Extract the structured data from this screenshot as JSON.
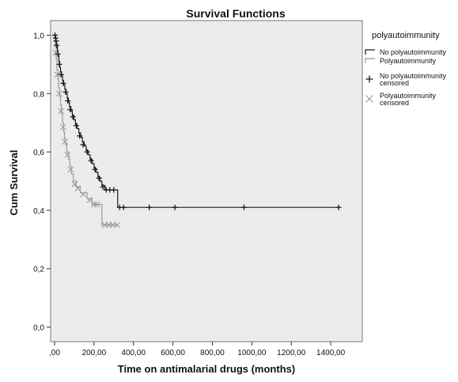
{
  "chart_data": {
    "type": "line",
    "subtype": "kaplan-meier step",
    "title": "Survival Functions",
    "xlabel": "Time on antimalarial drugs (months)",
    "ylabel": "Cum Survival",
    "xlim": [
      -20,
      1560
    ],
    "ylim": [
      -0.05,
      1.05
    ],
    "x_ticks": [
      0,
      200,
      400,
      600,
      800,
      1000,
      1200,
      1400
    ],
    "x_tick_labels": [
      ",00",
      "200,00",
      "400,00",
      "600,00",
      "800,00",
      "1000,00",
      "1200,00",
      "1400,00"
    ],
    "y_ticks": [
      0,
      0.2,
      0.4,
      0.6,
      0.8,
      1.0
    ],
    "y_tick_labels": [
      "0,0",
      "0,2",
      "0,4",
      "0,6",
      "0,8",
      "1,0"
    ],
    "grid": false,
    "plot_background": "#ececec",
    "legend": {
      "title": "polyautoimmunity",
      "placement": "right",
      "entries": [
        {
          "label": "No polyautoimmunity",
          "symbol": "step-line",
          "color": "#1a1a1a"
        },
        {
          "label": "Polyautoimmunity",
          "symbol": "step-line",
          "color": "#9a9a9a"
        },
        {
          "label": "No polyautoimmunity censored",
          "lines": [
            "No polyautoimmunity",
            "censored"
          ],
          "symbol": "plus",
          "color": "#1a1a1a"
        },
        {
          "label": "Polyautoimmunity censored",
          "lines": [
            "Polyautoimmunity",
            "censored"
          ],
          "symbol": "x",
          "color": "#9a9a9a"
        }
      ]
    },
    "series": [
      {
        "name": "No polyautoimmunity",
        "color": "#1a1a1a",
        "censor_marker": "plus",
        "steps": [
          [
            0,
            1.0
          ],
          [
            3,
            0.99
          ],
          [
            6,
            0.98
          ],
          [
            9,
            0.97
          ],
          [
            12,
            0.96
          ],
          [
            15,
            0.945
          ],
          [
            18,
            0.93
          ],
          [
            22,
            0.91
          ],
          [
            26,
            0.89
          ],
          [
            30,
            0.875
          ],
          [
            35,
            0.86
          ],
          [
            40,
            0.845
          ],
          [
            46,
            0.83
          ],
          [
            52,
            0.815
          ],
          [
            58,
            0.8
          ],
          [
            64,
            0.785
          ],
          [
            70,
            0.77
          ],
          [
            76,
            0.755
          ],
          [
            83,
            0.74
          ],
          [
            90,
            0.725
          ],
          [
            98,
            0.71
          ],
          [
            106,
            0.695
          ],
          [
            114,
            0.68
          ],
          [
            123,
            0.665
          ],
          [
            132,
            0.65
          ],
          [
            141,
            0.635
          ],
          [
            150,
            0.62
          ],
          [
            160,
            0.605
          ],
          [
            170,
            0.59
          ],
          [
            180,
            0.575
          ],
          [
            190,
            0.56
          ],
          [
            200,
            0.545
          ],
          [
            210,
            0.53
          ],
          [
            220,
            0.515
          ],
          [
            230,
            0.5
          ],
          [
            240,
            0.485
          ],
          [
            255,
            0.47
          ],
          [
            320,
            0.41
          ],
          [
            1440,
            0.41
          ]
        ],
        "censored": [
          [
            2,
            1.0
          ],
          [
            5,
            0.99
          ],
          [
            8,
            0.98
          ],
          [
            11,
            0.965
          ],
          [
            17,
            0.935
          ],
          [
            24,
            0.9
          ],
          [
            33,
            0.865
          ],
          [
            44,
            0.835
          ],
          [
            56,
            0.805
          ],
          [
            67,
            0.775
          ],
          [
            79,
            0.745
          ],
          [
            93,
            0.72
          ],
          [
            110,
            0.69
          ],
          [
            127,
            0.655
          ],
          [
            145,
            0.625
          ],
          [
            165,
            0.6
          ],
          [
            185,
            0.57
          ],
          [
            205,
            0.54
          ],
          [
            225,
            0.51
          ],
          [
            245,
            0.48
          ],
          [
            262,
            0.47
          ],
          [
            280,
            0.47
          ],
          [
            300,
            0.47
          ],
          [
            330,
            0.41
          ],
          [
            350,
            0.41
          ],
          [
            480,
            0.41
          ],
          [
            610,
            0.41
          ],
          [
            960,
            0.41
          ],
          [
            1440,
            0.41
          ]
        ]
      },
      {
        "name": "Polyautoimmunity",
        "color": "#9a9a9a",
        "censor_marker": "x",
        "steps": [
          [
            0,
            0.99
          ],
          [
            4,
            0.96
          ],
          [
            8,
            0.92
          ],
          [
            12,
            0.88
          ],
          [
            16,
            0.85
          ],
          [
            20,
            0.82
          ],
          [
            25,
            0.79
          ],
          [
            30,
            0.76
          ],
          [
            35,
            0.73
          ],
          [
            40,
            0.7
          ],
          [
            45,
            0.67
          ],
          [
            50,
            0.645
          ],
          [
            55,
            0.625
          ],
          [
            62,
            0.6
          ],
          [
            70,
            0.575
          ],
          [
            78,
            0.55
          ],
          [
            85,
            0.525
          ],
          [
            95,
            0.5
          ],
          [
            110,
            0.48
          ],
          [
            130,
            0.46
          ],
          [
            165,
            0.44
          ],
          [
            190,
            0.42
          ],
          [
            240,
            0.35
          ],
          [
            320,
            0.35
          ]
        ],
        "censored": [
          [
            6,
            0.94
          ],
          [
            14,
            0.865
          ],
          [
            23,
            0.8
          ],
          [
            33,
            0.74
          ],
          [
            43,
            0.685
          ],
          [
            53,
            0.635
          ],
          [
            66,
            0.59
          ],
          [
            82,
            0.54
          ],
          [
            102,
            0.49
          ],
          [
            118,
            0.475
          ],
          [
            145,
            0.455
          ],
          [
            178,
            0.435
          ],
          [
            200,
            0.42
          ],
          [
            215,
            0.42
          ],
          [
            255,
            0.35
          ],
          [
            275,
            0.35
          ],
          [
            295,
            0.35
          ],
          [
            318,
            0.35
          ]
        ]
      }
    ]
  }
}
